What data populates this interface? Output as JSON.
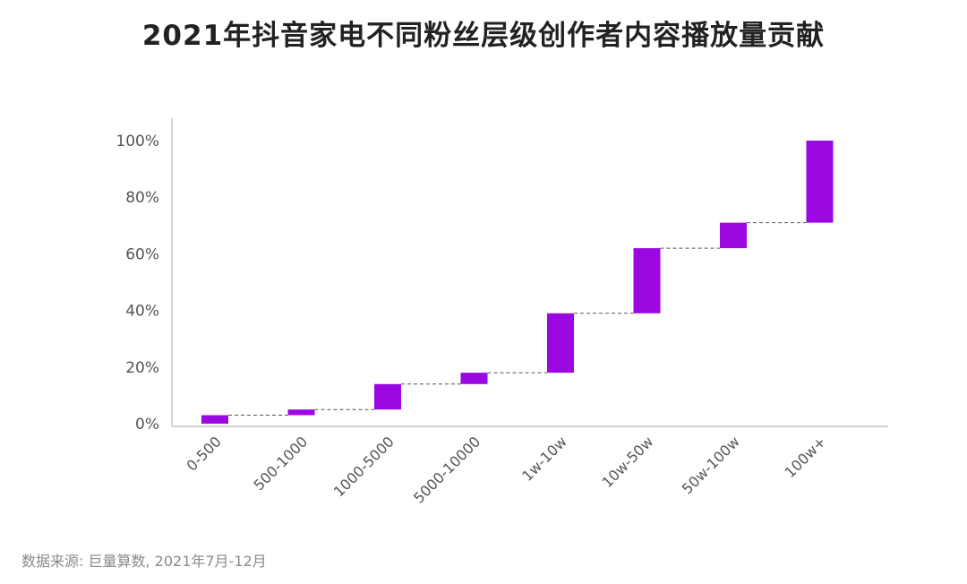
{
  "title": "2021年抖音家电不同粉丝层级创作者内容播放量贡献",
  "source": "数据来源: 巨量算数, 2021年7月-12月",
  "colors": {
    "bar": "#9b07e0",
    "connector": "#555555",
    "axis": "#bbbbbb",
    "tick_label": "#555555"
  },
  "chart_data": {
    "type": "bar",
    "subtype": "waterfall",
    "title": "2021年抖音家电不同粉丝层级创作者内容播放量贡献",
    "xlabel": "",
    "ylabel": "",
    "ylim": [
      0,
      100
    ],
    "yticks": [
      0,
      20,
      40,
      60,
      80,
      100
    ],
    "ytick_labels": [
      "0%",
      "20%",
      "40%",
      "60%",
      "80%",
      "100%"
    ],
    "categories": [
      "0-500",
      "500-1000",
      "1000-5000",
      "5000-10000",
      "1w-10w",
      "10w-50w",
      "50w-100w",
      "100w+"
    ],
    "values": [
      3,
      2,
      9,
      4,
      21,
      23,
      9,
      29
    ],
    "cumulative": [
      3,
      5,
      14,
      18,
      39,
      62,
      71,
      100
    ],
    "grid": false,
    "legend": "none"
  }
}
